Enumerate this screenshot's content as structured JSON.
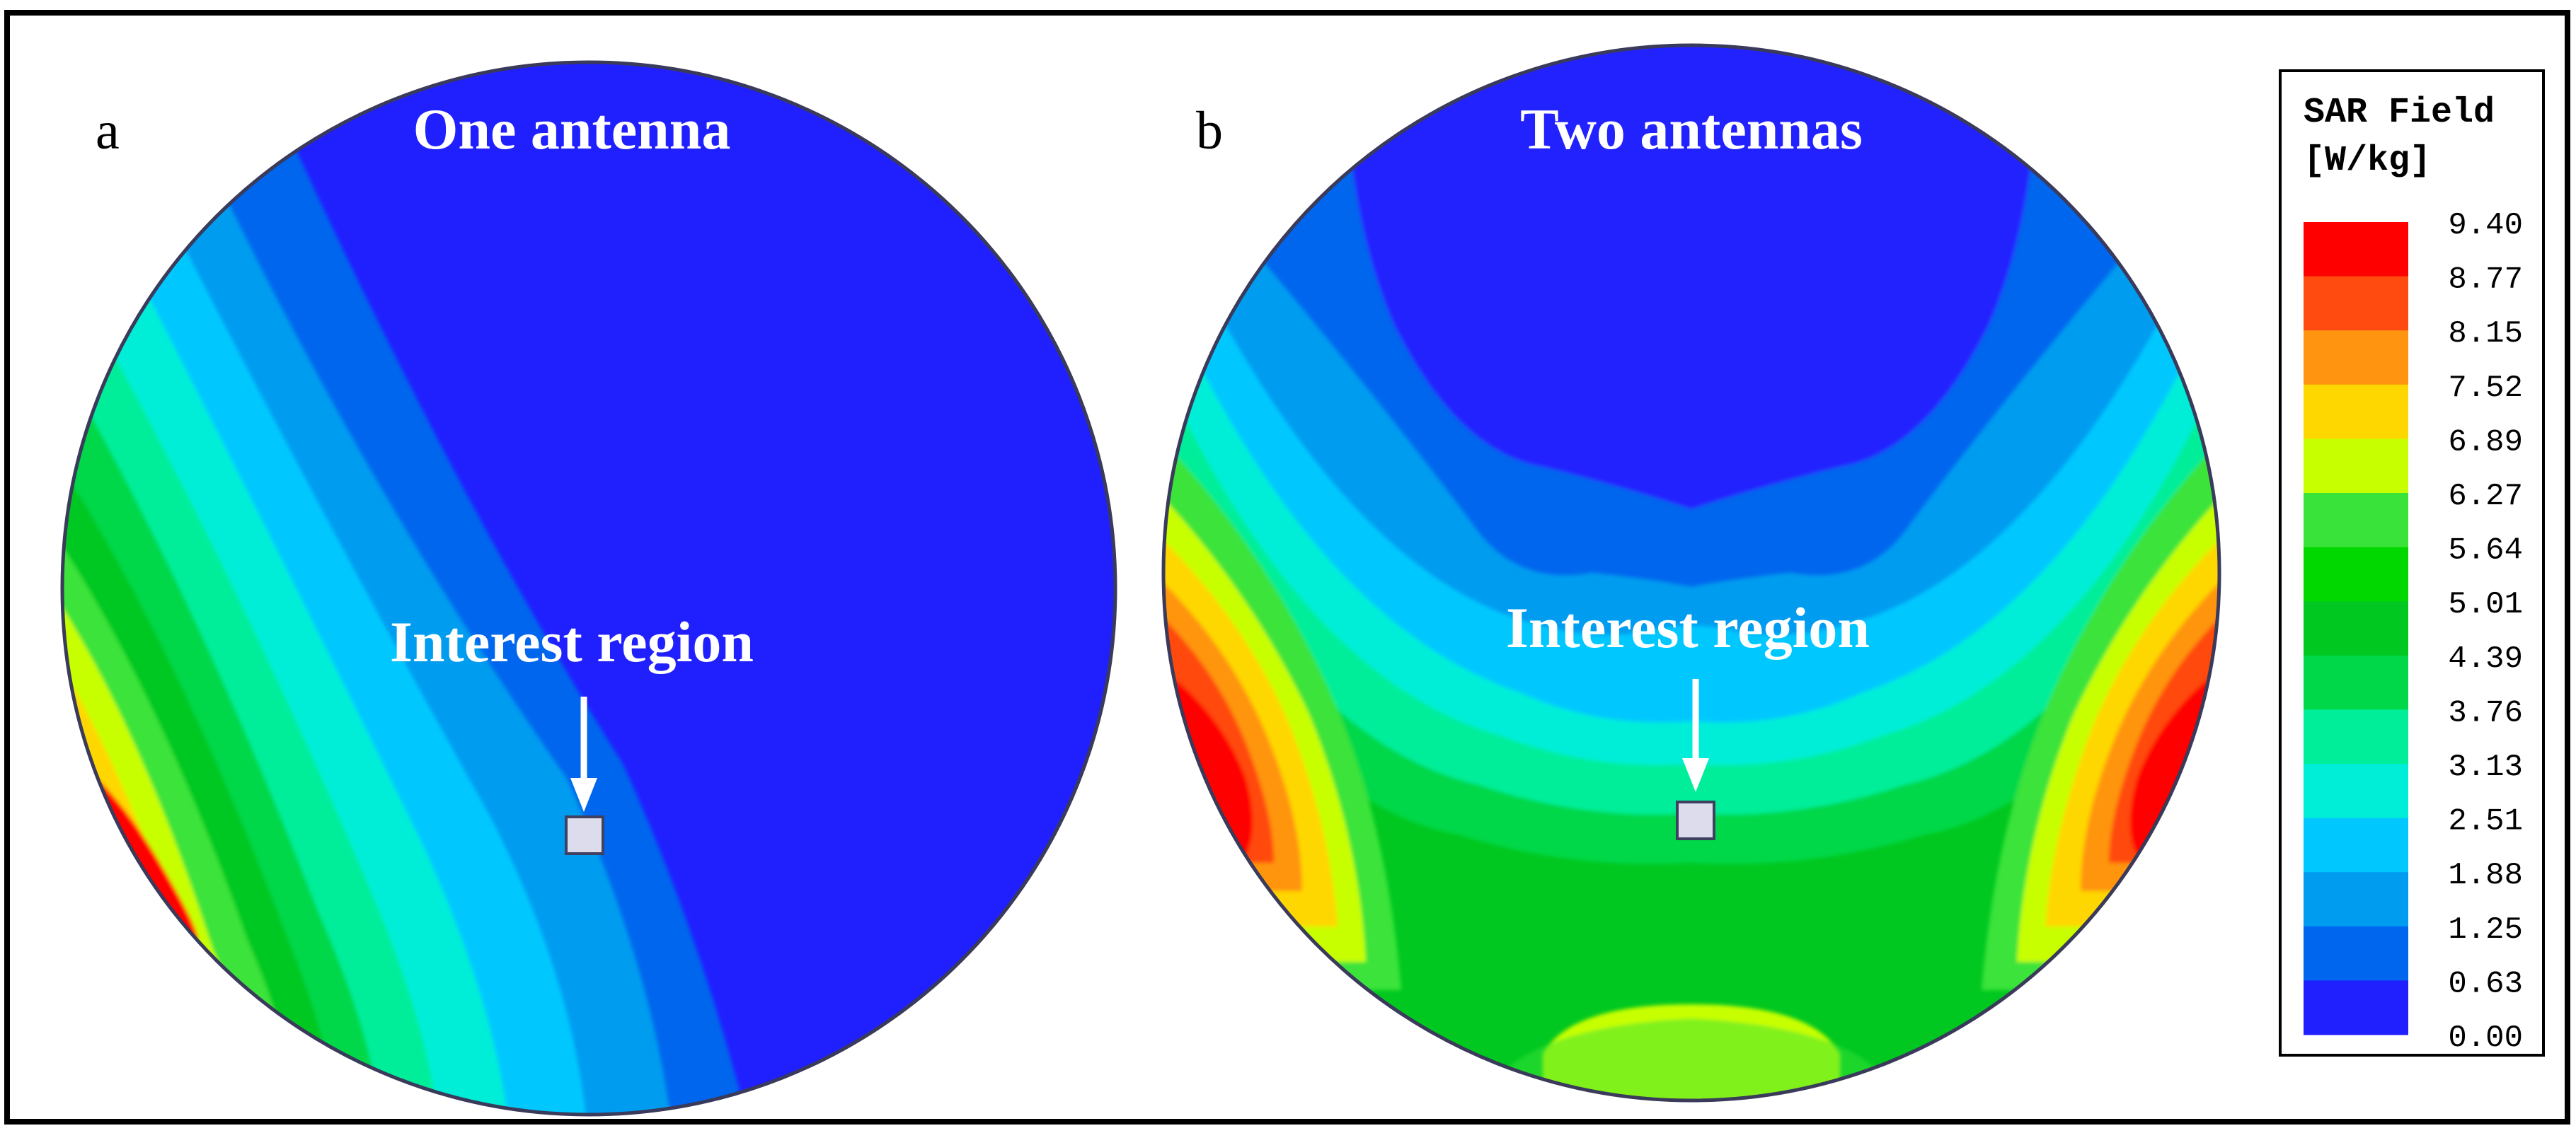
{
  "panels": [
    {
      "letter": "a",
      "title": "One antenna",
      "annotation": "Interest region"
    },
    {
      "letter": "b",
      "title": "Two antennas",
      "annotation": "Interest region"
    }
  ],
  "legend": {
    "title_line1": "SAR Field",
    "title_line2": "[W/kg]",
    "levels": [
      "9.40",
      "8.77",
      "8.15",
      "7.52",
      "6.89",
      "6.27",
      "5.64",
      "5.01",
      "4.39",
      "3.76",
      "3.13",
      "2.51",
      "1.88",
      "1.25",
      "0.63",
      "0.00"
    ],
    "colors": [
      "#ff0000",
      "#ff4a10",
      "#ff9410",
      "#ffd700",
      "#c8ff00",
      "#3ae33a",
      "#00d800",
      "#00c820",
      "#00d84a",
      "#00ee9a",
      "#00eed8",
      "#00c8ff",
      "#009cf0",
      "#0066ee",
      "#2020ff"
    ]
  },
  "colors": {
    "interest_box_fill": "#dcdcec",
    "annotation_text": "#ffffff",
    "frame": "#000000"
  }
}
